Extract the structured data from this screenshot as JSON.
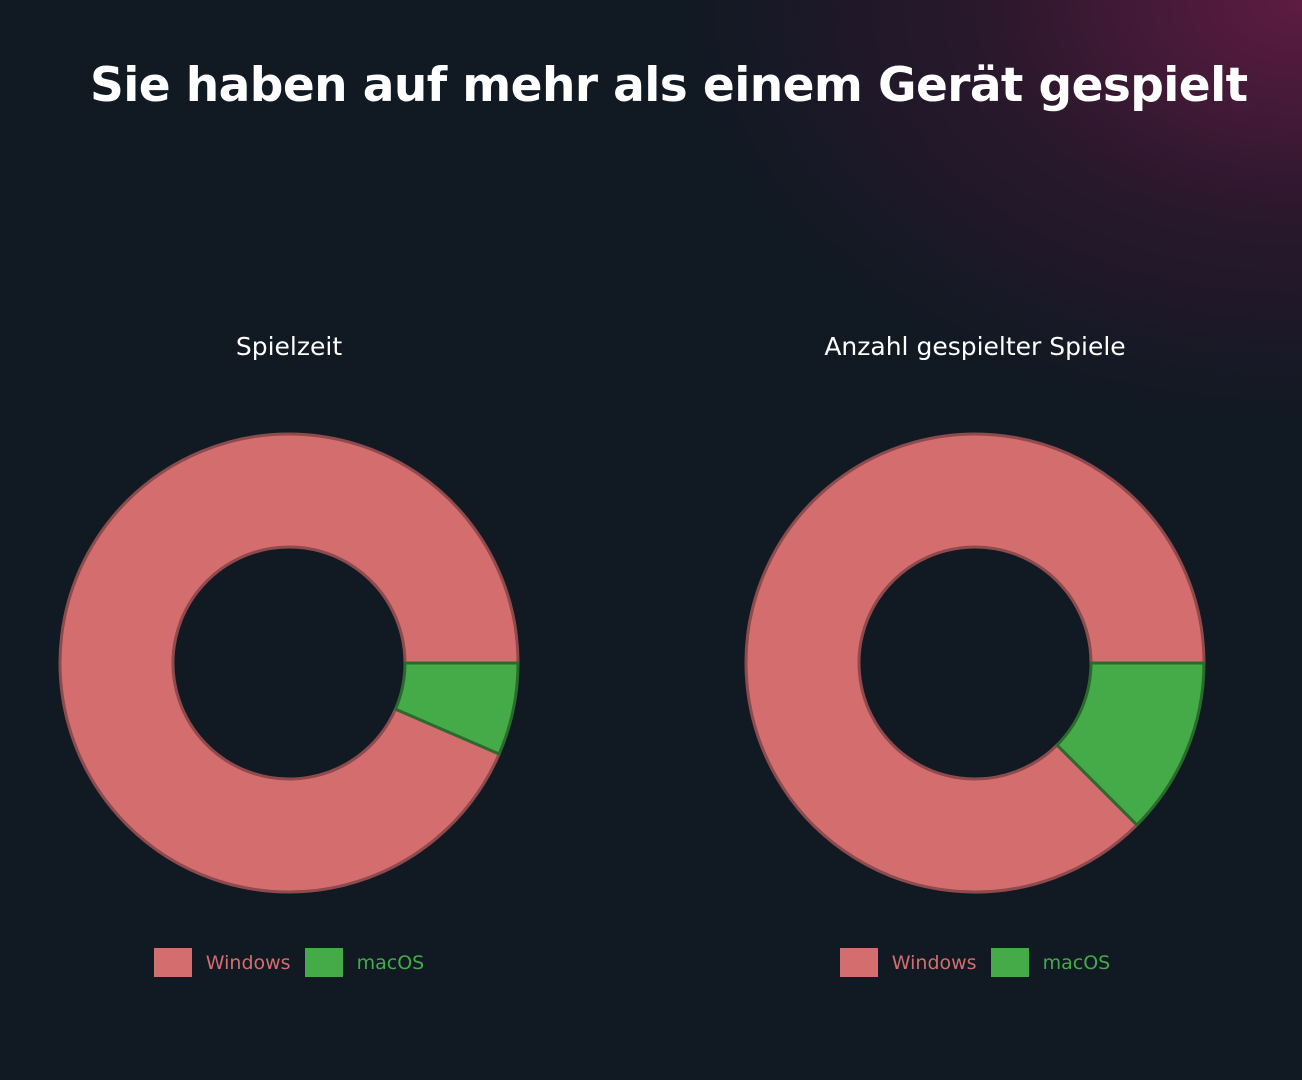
{
  "page": {
    "title": "Sie haben auf mehr als einem Gerät gespielt"
  },
  "colors": {
    "windows": "#d46e6e",
    "macos": "#45ab48",
    "windows_stroke": "#8e4a4d",
    "macos_stroke": "#2b6a2d",
    "background": "#111923",
    "accent_glow": "#6c1c48"
  },
  "chart_data": [
    {
      "type": "pie",
      "title": "Spielzeit",
      "donut": true,
      "categories": [
        "Windows",
        "macOS"
      ],
      "values": [
        93.5,
        6.5
      ],
      "legend_position": "bottom"
    },
    {
      "type": "pie",
      "title": "Anzahl gespielter Spiele",
      "donut": true,
      "categories": [
        "Windows",
        "macOS"
      ],
      "values": [
        87.5,
        12.5
      ],
      "legend_position": "bottom"
    }
  ]
}
